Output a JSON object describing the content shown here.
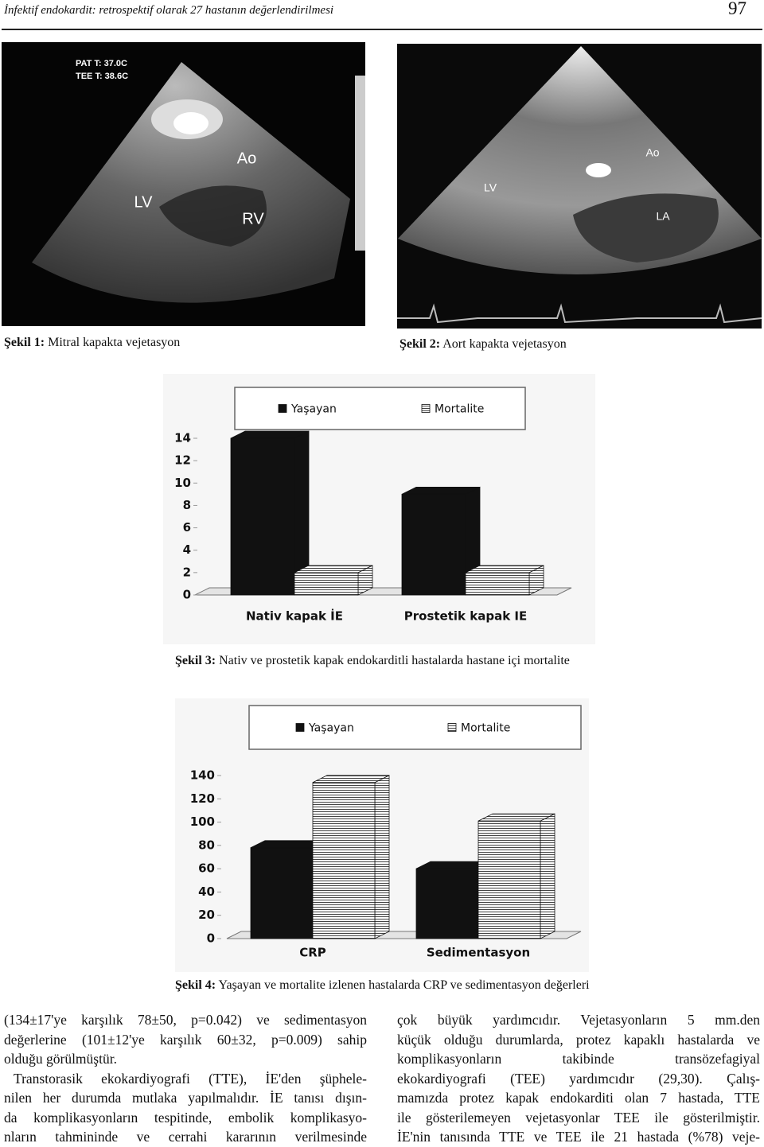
{
  "header": {
    "title": "İnfektif endokardit: retrospektif olarak 27 hastanın değerlendirilmesi",
    "page": "97"
  },
  "figures": [
    {
      "label": "Şekil 1:",
      "caption": "Mitral kapakta vejetasyon",
      "annotations": [
        "LV",
        "Ao",
        "RV"
      ],
      "overlay": [
        "PAT T: 37.0C",
        "TEE T: 38.6C"
      ]
    },
    {
      "label": "Şekil 2:",
      "caption": "Aort kapakta vejetasyon",
      "annotations": [
        "LV",
        "Ao",
        "LA"
      ],
      "overlay": []
    }
  ],
  "chart_data": [
    {
      "type": "bar",
      "figure_label": "Şekil 3:",
      "caption": "Nativ ve prostetik kapak endokarditli hastalarda hastane içi mortalite",
      "categories": [
        "Nativ kapak İE",
        "Prostetik kapak IE"
      ],
      "series": [
        {
          "name": "Yaşayan",
          "color": "#111111",
          "pattern": "solid",
          "values": [
            14,
            9
          ]
        },
        {
          "name": "Mortalite",
          "color": "#444444",
          "pattern": "horizontal-lines",
          "values": [
            2,
            2
          ]
        }
      ],
      "ylim": [
        0,
        14
      ],
      "yticks": [
        0,
        2,
        4,
        6,
        8,
        10,
        12,
        14
      ],
      "legend": "top",
      "grid": false
    },
    {
      "type": "bar",
      "figure_label": "Şekil 4:",
      "caption": "Yaşayan ve mortalite izlenen hastalarda CRP ve sedimentasyon değerleri",
      "categories": [
        "CRP",
        "Sedimentasyon"
      ],
      "series": [
        {
          "name": "Yaşayan",
          "color": "#111111",
          "pattern": "solid",
          "values": [
            78,
            60
          ]
        },
        {
          "name": "Mortalite",
          "color": "#444444",
          "pattern": "horizontal-lines",
          "values": [
            134,
            101
          ]
        }
      ],
      "ylim": [
        0,
        140
      ],
      "yticks": [
        0,
        20,
        40,
        60,
        80,
        100,
        120,
        140
      ],
      "legend": "top",
      "grid": false
    }
  ],
  "body": {
    "columns": [
      [
        "(134±17'ye karşılık 78±50, p=0.042) ve sedimentasyon",
        "değerlerine (101±12'ye karşılık 60±32, p=0.009) sahip",
        "olduğu görülmüştür.",
        "Transtorasik ekokardiyografi (TTE), İE'den şüphele-",
        "nilen her durumda mutlaka yapılmalıdır. İE tanısı dışın-",
        "da komplikasyonların tespitinde, embolik komplikasyo-",
        "nların tahmininde ve cerrahi kararının verilmesinde"
      ],
      [
        "çok büyük yardımcıdır. Vejetasyonların 5 mm.den",
        "küçük olduğu durumlarda, protez kapaklı hastalarda ve",
        "komplikasyonların takibinde transözefagiyal",
        "ekokardiyografi (TEE) yardımcıdır (29,30). Çalış-",
        "mamızda protez kapak endokarditi olan 7 hastada, TTE",
        "ile gösterilemeyen vejetasyonlar TEE ile gösterilmiştir.",
        "İE'nin tanısında TTE ve TEE ile 21 hastada (%78) veje-"
      ]
    ]
  }
}
